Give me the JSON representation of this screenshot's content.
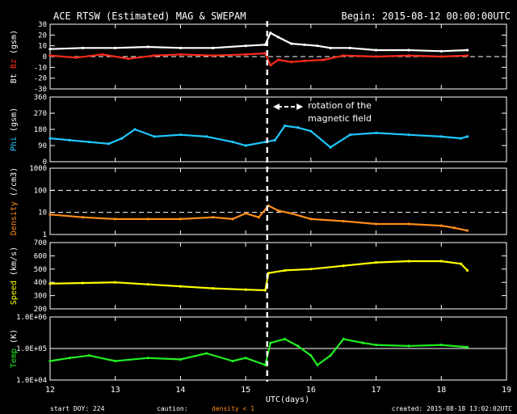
{
  "header": {
    "title": "ACE RTSW (Estimated) MAG & SWEPAM",
    "begin": "Begin: 2015-08-12 00:00:00UTC"
  },
  "footer": {
    "start_doy": "start DOY: 224",
    "caution": "caution:",
    "density_note": "density < 1",
    "created": "created: 2015-08-18 13:02:02UTC"
  },
  "colors": {
    "background": "#000000",
    "bt": "#ffffff",
    "bz": "#ff2a1a",
    "phi": "#1ec8ff",
    "density": "#ff8c1a",
    "speed": "#ffff00",
    "temp": "#22ee22"
  },
  "chart_data": {
    "type": "line",
    "xlabel": "UTC(days)",
    "xlim": [
      12,
      19
    ],
    "x_ticks": [
      "12",
      "13",
      "14",
      "15",
      "16",
      "17",
      "18",
      "19"
    ],
    "event_marker_x": 15.33,
    "annotation": {
      "text": [
        "rotation of the",
        "magnetic field"
      ],
      "from_x": 15.42,
      "to_x": 15.88,
      "y": 315
    },
    "panels": [
      {
        "id": "mag",
        "ylabel_parts": [
          "Bt",
          "Bz",
          "(gsm)"
        ],
        "ylim": [
          -30,
          30
        ],
        "ticks": [
          "30",
          "20",
          "10",
          "0",
          "-10",
          "-20",
          "-30"
        ],
        "tick_values": [
          30,
          20,
          10,
          0,
          -10,
          -20,
          -30
        ],
        "dashed": [
          0
        ],
        "series": [
          {
            "name": "Bt",
            "color_key": "bt",
            "x": [
              12,
              12.5,
              13,
              13.5,
              14,
              14.5,
              15,
              15.3,
              15.38,
              15.5,
              15.7,
              15.9,
              16.1,
              16.3,
              16.6,
              17,
              17.5,
              18,
              18.4
            ],
            "y": [
              7,
              8,
              8,
              9,
              8,
              8,
              10,
              11,
              22,
              18,
              12,
              11,
              10,
              8,
              8,
              6,
              6,
              5,
              6
            ]
          },
          {
            "name": "Bz",
            "color_key": "bz",
            "x": [
              12,
              12.4,
              12.8,
              13.2,
              13.6,
              14,
              14.5,
              15,
              15.3,
              15.38,
              15.5,
              15.7,
              15.9,
              16.2,
              16.5,
              17,
              17.5,
              18,
              18.4
            ],
            "y": [
              1,
              -1,
              2,
              -2,
              1,
              2,
              1,
              2,
              3,
              -8,
              -3,
              -5,
              -4,
              -3,
              1,
              0,
              1,
              0,
              1
            ]
          }
        ]
      },
      {
        "id": "phi",
        "ylabel_parts": [
          "Phi",
          "(gsm)"
        ],
        "ylim": [
          0,
          360
        ],
        "ticks": [
          "360",
          "270",
          "180",
          "90",
          "0"
        ],
        "tick_values": [
          360,
          270,
          180,
          90,
          0
        ],
        "dashed": [],
        "series": [
          {
            "name": "Phi",
            "color_key": "phi",
            "x": [
              12,
              12.3,
              12.6,
              12.9,
              13.1,
              13.3,
              13.6,
              14,
              14.4,
              14.8,
              15,
              15.3,
              15.45,
              15.6,
              15.8,
              16,
              16.3,
              16.6,
              17,
              17.5,
              18,
              18.3,
              18.4
            ],
            "y": [
              130,
              120,
              110,
              100,
              130,
              180,
              140,
              150,
              140,
              110,
              90,
              110,
              120,
              200,
              190,
              170,
              80,
              150,
              160,
              150,
              140,
              130,
              140
            ]
          }
        ]
      },
      {
        "id": "density",
        "ylabel_parts": [
          "Density",
          "(/cm3)"
        ],
        "ylim": [
          1,
          1000
        ],
        "scale": "log",
        "ticks": [
          "1000",
          "100",
          "10",
          "1"
        ],
        "tick_values": [
          1000,
          100,
          10,
          1
        ],
        "dashed": [
          10,
          100
        ],
        "series": [
          {
            "name": "Density",
            "color_key": "density",
            "x": [
              12,
              12.5,
              13,
              13.5,
              14,
              14.5,
              14.8,
              15,
              15.2,
              15.35,
              15.5,
              15.7,
              16,
              16.5,
              17,
              17.5,
              18,
              18.2,
              18.4
            ],
            "y": [
              8,
              6,
              5,
              5,
              5,
              6,
              5,
              9,
              6,
              20,
              12,
              9,
              5,
              4,
              3,
              3,
              2.5,
              2,
              1.5
            ]
          }
        ]
      },
      {
        "id": "speed",
        "ylabel_parts": [
          "Speed",
          "(km/s)"
        ],
        "ylim": [
          200,
          700
        ],
        "ticks": [
          "700",
          "600",
          "500",
          "400",
          "300",
          "200"
        ],
        "tick_values": [
          700,
          600,
          500,
          400,
          300,
          200
        ],
        "dashed": [],
        "series": [
          {
            "name": "Speed",
            "color_key": "speed",
            "x": [
              12,
              12.5,
              13,
              13.5,
              14,
              14.5,
              15,
              15.3,
              15.35,
              15.6,
              16,
              16.5,
              17,
              17.5,
              18,
              18.3,
              18.4
            ],
            "y": [
              390,
              395,
              400,
              385,
              370,
              355,
              345,
              340,
              470,
              490,
              500,
              525,
              550,
              560,
              560,
              540,
              490
            ]
          }
        ]
      },
      {
        "id": "temp",
        "ylabel_parts": [
          "Temp",
          "(K)"
        ],
        "ylim": [
          10000,
          1000000
        ],
        "scale": "log",
        "ticks": [
          "1.0E+06",
          "1.0E+05",
          "1.0E+04"
        ],
        "tick_values": [
          1000000,
          100000,
          10000
        ],
        "dashed": [],
        "solid_ref": [
          100000
        ],
        "series": [
          {
            "name": "Temp",
            "color_key": "temp",
            "x": [
              12,
              12.3,
              12.6,
              13,
              13.5,
              14,
              14.4,
              14.8,
              15,
              15.3,
              15.38,
              15.6,
              15.8,
              16,
              16.1,
              16.3,
              16.5,
              16.8,
              17,
              17.5,
              18,
              18.4
            ],
            "y": [
              40000,
              50000,
              60000,
              40000,
              50000,
              45000,
              70000,
              40000,
              50000,
              30000,
              150000,
              200000,
              120000,
              60000,
              30000,
              60000,
              200000,
              150000,
              130000,
              120000,
              130000,
              110000
            ]
          }
        ]
      }
    ]
  }
}
